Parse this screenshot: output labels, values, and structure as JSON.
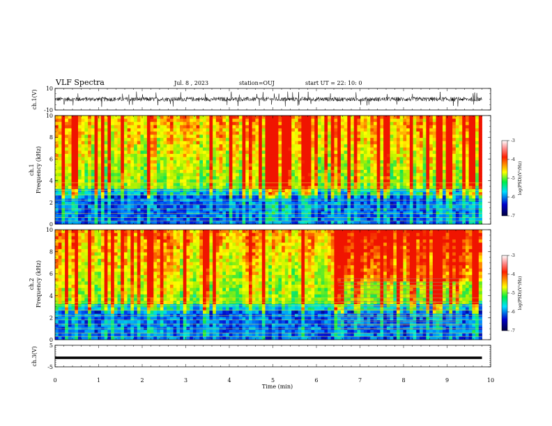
{
  "header": {
    "title": "VLF Spectra",
    "date": "Jul. 8 , 2023",
    "station": "station=OUJ",
    "start": "start UT = 22: 10: 0"
  },
  "colorbar": {
    "label": "log(PSD)(V²/Hz)",
    "ticks": [
      "-3",
      "-4",
      "-5",
      "-6",
      "-7"
    ],
    "colors": [
      "#ffffff",
      "#ff2000",
      "#ffff00",
      "#00ee44",
      "#00e0ff",
      "#0000cc",
      "#000040"
    ]
  },
  "chart_data": [
    {
      "type": "line",
      "name": "ch1-waveform",
      "ylabel": "ch.1(V)",
      "ylim": [
        -10,
        10
      ],
      "ytick_labels": [
        "10",
        "-10"
      ],
      "xlim": [
        0,
        10
      ],
      "description_values": {
        "baseline": 0.0,
        "typical_amplitude": 2,
        "spike_amplitude": 7
      }
    },
    {
      "type": "heatmap",
      "name": "ch1-spectrogram",
      "ylabel": "ch.1\nFrequency (kHz)",
      "ylim": [
        0,
        10
      ],
      "xlim": [
        0,
        10
      ],
      "ytick_labels": [
        "0",
        "2",
        "4",
        "6",
        "8",
        "10"
      ],
      "zlim": [
        -7,
        -3
      ],
      "data_end_min": 9.8
    },
    {
      "type": "heatmap",
      "name": "ch2-spectrogram",
      "ylabel": "ch.2\nFrequency (kHz)",
      "ylim": [
        0,
        10
      ],
      "xlim": [
        0,
        10
      ],
      "ytick_labels": [
        "0",
        "2",
        "4",
        "6",
        "8",
        "10"
      ],
      "zlim": [
        -7,
        -3
      ],
      "data_end_min": 9.8
    },
    {
      "type": "line",
      "name": "ch3-waveform",
      "ylabel": "ch.3(V)",
      "ylim": [
        -5,
        5
      ],
      "ytick_labels": [
        "5",
        "-5"
      ],
      "xlim": [
        0,
        10
      ],
      "xlabel": "Time (min)",
      "xtick_labels": [
        "0",
        "1",
        "2",
        "3",
        "4",
        "5",
        "6",
        "7",
        "8",
        "9",
        "10"
      ],
      "level": -0.8
    }
  ]
}
